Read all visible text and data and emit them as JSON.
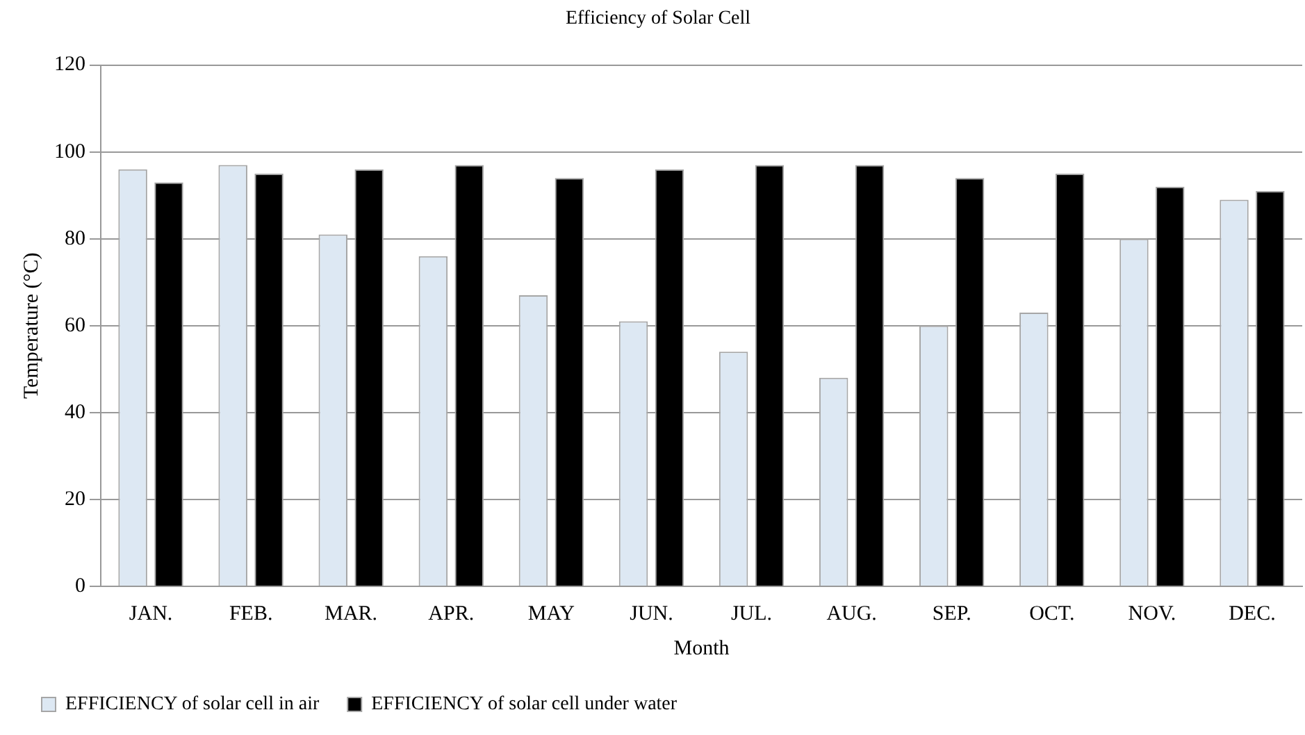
{
  "chart_data": {
    "type": "bar",
    "title": "Efficiency of Solar Cell",
    "xlabel": "Month",
    "ylabel": "Temperature (°C)",
    "categories": [
      "JAN.",
      "FEB.",
      "MAR.",
      "APR.",
      "MAY",
      "JUN.",
      "JUL.",
      "AUG.",
      "SEP.",
      "OCT.",
      "NOV.",
      "DEC."
    ],
    "series": [
      {
        "name": "EFFICIENCY of solar cell in air",
        "color": "#dde8f3",
        "values": [
          96,
          97,
          81,
          76,
          67,
          61,
          54,
          48,
          60,
          63,
          80,
          89
        ]
      },
      {
        "name": "EFFICIENCY of solar cell under water",
        "color": "#000000",
        "values": [
          93,
          95,
          96,
          97,
          94,
          96,
          97,
          97,
          94,
          95,
          92,
          91
        ]
      }
    ],
    "ylim": [
      0,
      120
    ],
    "yticks": [
      0,
      20,
      40,
      60,
      80,
      100,
      120
    ],
    "grid": "y",
    "legend": "bottom"
  }
}
